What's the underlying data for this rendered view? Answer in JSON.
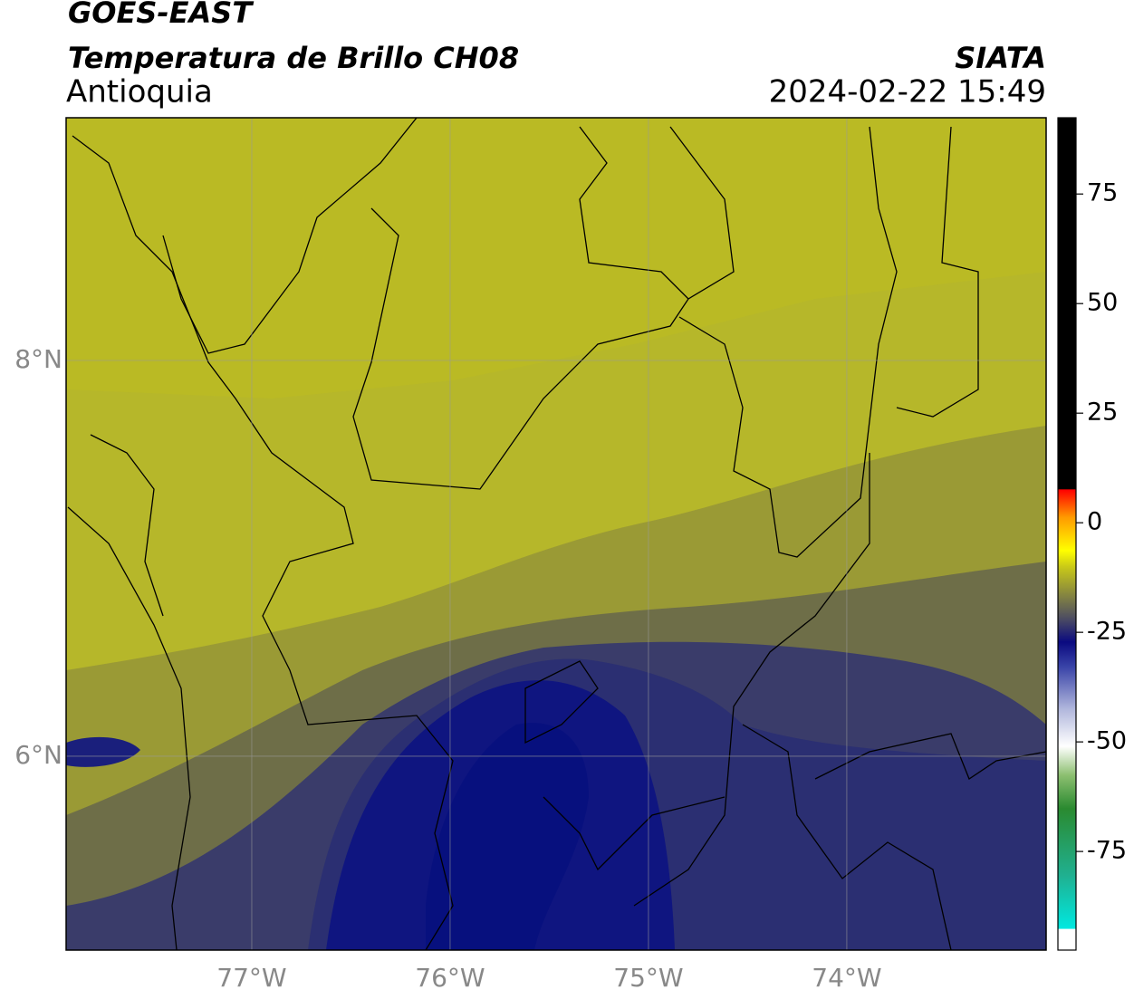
{
  "header": {
    "title": "GOES-EAST",
    "subtitle": "Temperatura de Brillo CH08",
    "region": "Antioquia",
    "source": "SIATA",
    "timestamp": "2024-02-22 15:49"
  },
  "map": {
    "lonlim": [
      -77.936,
      -72.995
    ],
    "latlim": [
      5.02,
      9.227
    ],
    "lonticks": [
      {
        "value": -77,
        "label": "77°W"
      },
      {
        "value": -76,
        "label": "76°W"
      },
      {
        "value": -75,
        "label": "75°W"
      },
      {
        "value": -74,
        "label": "74°W"
      }
    ],
    "latticks": [
      {
        "value": 6,
        "label": "6°N"
      },
      {
        "value": 8,
        "label": "8°N"
      }
    ]
  },
  "colorbar": {
    "lim": [
      -97.5,
      92.4
    ],
    "ticks": [
      -75,
      -50,
      -25,
      0,
      25,
      50,
      75
    ]
  }
}
